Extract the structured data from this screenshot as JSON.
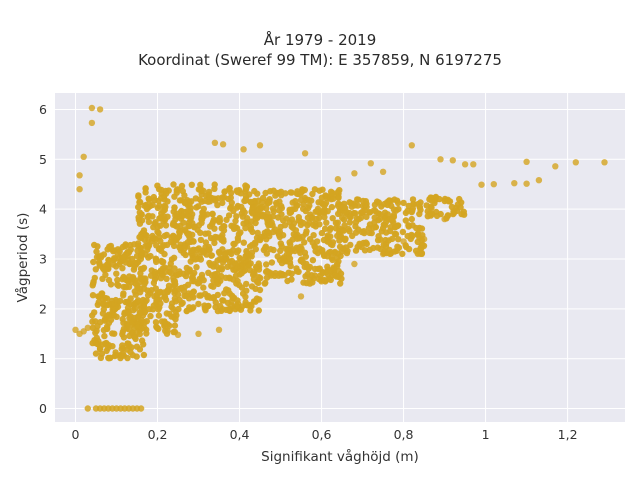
{
  "chart_data": {
    "type": "scatter",
    "title_lines": [
      "År 1979 - 2019",
      "Koordinat (Sweref 99 TM): E 357859, N 6197275"
    ],
    "xlabel": "Signifikant våghöjd (m)",
    "ylabel": "Vågperiod (s)",
    "xlim": [
      -0.05,
      1.34
    ],
    "ylim": [
      -0.27,
      6.33
    ],
    "x_ticks": [
      0,
      0.2,
      0.4,
      0.6,
      0.8,
      1,
      1.2
    ],
    "x_tick_labels": [
      "0",
      "0,2",
      "0,4",
      "0,6",
      "0,8",
      "1",
      "1,2"
    ],
    "y_ticks": [
      0,
      1,
      2,
      3,
      4,
      5,
      6
    ],
    "y_tick_labels": [
      "0",
      "1",
      "2",
      "3",
      "4",
      "5",
      "6"
    ],
    "grid": true,
    "background_color": "#e9e9f1",
    "point_color": "#d4a421",
    "outliers": [
      {
        "x": 0.04,
        "y": 6.03
      },
      {
        "x": 0.06,
        "y": 6.0
      },
      {
        "x": 0.04,
        "y": 5.73
      },
      {
        "x": 0.02,
        "y": 5.05
      },
      {
        "x": 0.01,
        "y": 4.68
      },
      {
        "x": 0.01,
        "y": 4.4
      },
      {
        "x": 0.34,
        "y": 5.33
      },
      {
        "x": 0.36,
        "y": 5.3
      },
      {
        "x": 0.45,
        "y": 5.28
      },
      {
        "x": 0.41,
        "y": 5.2
      },
      {
        "x": 0.82,
        "y": 5.28
      },
      {
        "x": 0.56,
        "y": 5.12
      },
      {
        "x": 0.89,
        "y": 5.0
      },
      {
        "x": 0.92,
        "y": 4.98
      },
      {
        "x": 0.95,
        "y": 4.9
      },
      {
        "x": 0.97,
        "y": 4.9
      },
      {
        "x": 1.1,
        "y": 4.95
      },
      {
        "x": 1.17,
        "y": 4.86
      },
      {
        "x": 1.22,
        "y": 4.94
      },
      {
        "x": 1.29,
        "y": 4.94
      },
      {
        "x": 1.13,
        "y": 4.58
      },
      {
        "x": 1.07,
        "y": 4.52
      },
      {
        "x": 1.1,
        "y": 4.51
      },
      {
        "x": 1.02,
        "y": 4.5
      },
      {
        "x": 0.99,
        "y": 4.49
      },
      {
        "x": 0.72,
        "y": 4.92
      },
      {
        "x": 0.75,
        "y": 4.75
      },
      {
        "x": 0.68,
        "y": 4.72
      },
      {
        "x": 0.64,
        "y": 4.6
      },
      {
        "x": 0.7,
        "y": 3.95
      },
      {
        "x": 0.0,
        "y": 1.58
      },
      {
        "x": 0.01,
        "y": 1.5
      },
      {
        "x": 0.02,
        "y": 1.55
      },
      {
        "x": 0.03,
        "y": 1.62
      },
      {
        "x": 0.35,
        "y": 1.58
      },
      {
        "x": 0.3,
        "y": 1.5
      },
      {
        "x": 0.25,
        "y": 1.48
      },
      {
        "x": 0.55,
        "y": 2.25
      },
      {
        "x": 0.6,
        "y": 2.55
      },
      {
        "x": 0.8,
        "y": 3.35
      },
      {
        "x": 0.75,
        "y": 3.1
      },
      {
        "x": 0.85,
        "y": 3.4
      },
      {
        "x": 0.9,
        "y": 3.8
      },
      {
        "x": 0.68,
        "y": 2.9
      }
    ],
    "zero_points_x": [
      0.03,
      0.05,
      0.06,
      0.07,
      0.08,
      0.09,
      0.1,
      0.11,
      0.12,
      0.13,
      0.14,
      0.15,
      0.16
    ],
    "dense_region": [
      {
        "x_from": 0.04,
        "x_to": 0.17,
        "y_from": 1.0,
        "y_to": 3.3
      },
      {
        "x_from": 0.15,
        "x_to": 0.25,
        "y_from": 1.5,
        "y_to": 4.5
      },
      {
        "x_from": 0.25,
        "x_to": 0.45,
        "y_from": 1.95,
        "y_to": 4.5
      },
      {
        "x_from": 0.45,
        "x_to": 0.65,
        "y_from": 2.5,
        "y_to": 4.4
      },
      {
        "x_from": 0.65,
        "x_to": 0.85,
        "y_from": 3.1,
        "y_to": 4.2
      },
      {
        "x_from": 0.85,
        "x_to": 0.95,
        "y_from": 3.8,
        "y_to": 4.25
      }
    ]
  }
}
